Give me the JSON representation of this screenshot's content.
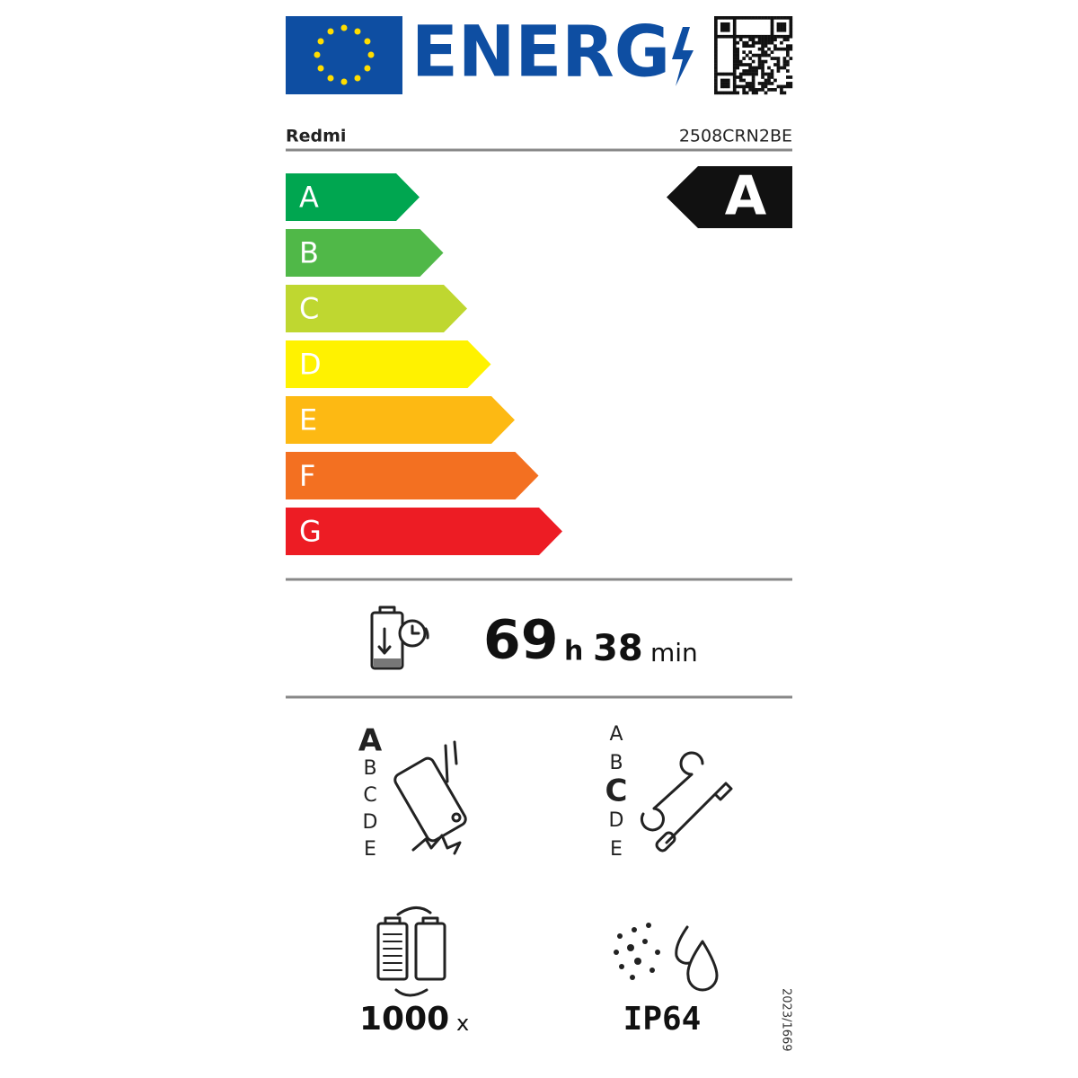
{
  "header": {
    "logo_text": "ENERG",
    "supplier": "Redmi",
    "model": "2508CRN2BE"
  },
  "scale": {
    "classes": [
      "A",
      "B",
      "C",
      "D",
      "E",
      "F",
      "G"
    ],
    "colors": [
      "#00a650",
      "#50b848",
      "#bfd730",
      "#fff200",
      "#fdb913",
      "#f37021",
      "#ed1c24"
    ],
    "rating": "A"
  },
  "battery_endurance": {
    "hours": 69,
    "hours_unit": "h",
    "minutes": 38,
    "minutes_unit": "min"
  },
  "drop_resistance": {
    "classes": [
      "A",
      "B",
      "C",
      "D",
      "E"
    ],
    "selected": "A"
  },
  "repairability": {
    "classes": [
      "A",
      "B",
      "C",
      "D",
      "E"
    ],
    "selected": "C"
  },
  "battery_cycles": {
    "value": 1000,
    "unit": "x"
  },
  "ingress_protection": "IP64",
  "regulation": "2023/1669"
}
